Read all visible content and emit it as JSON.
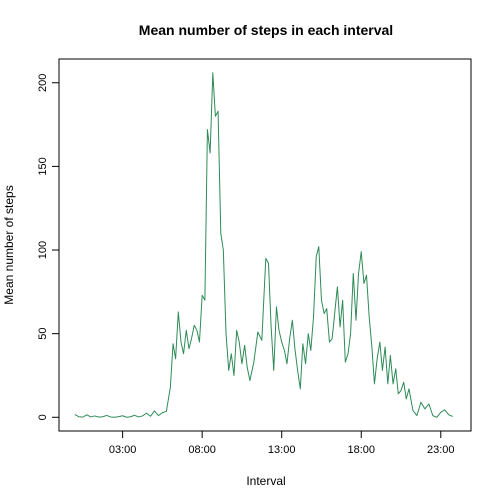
{
  "chart_data": {
    "type": "line",
    "title": "Mean number of steps in each interval",
    "xlabel": "Interval",
    "ylabel": "Mean number of steps",
    "line_color": "#2e8b57",
    "xlim": [
      -1.0,
      24.9
    ],
    "ylim": [
      -8.2,
      214.2
    ],
    "x_ticks": [
      {
        "value": 3,
        "label": "03:00"
      },
      {
        "value": 8,
        "label": "08:00"
      },
      {
        "value": 13,
        "label": "13:00"
      },
      {
        "value": 18,
        "label": "18:00"
      },
      {
        "value": 23,
        "label": "23:00"
      }
    ],
    "y_ticks": [
      {
        "value": 0,
        "label": "0"
      },
      {
        "value": 50,
        "label": "50"
      },
      {
        "value": 100,
        "label": "100"
      },
      {
        "value": 150,
        "label": "150"
      },
      {
        "value": 200,
        "label": "200"
      }
    ],
    "x": [
      0.0,
      0.25,
      0.5,
      0.75,
      1.0,
      1.25,
      1.5,
      1.75,
      2.0,
      2.25,
      2.5,
      2.75,
      3.0,
      3.25,
      3.5,
      3.75,
      4.0,
      4.25,
      4.5,
      4.75,
      5.0,
      5.25,
      5.5,
      5.75,
      6.0,
      6.17,
      6.33,
      6.5,
      6.67,
      6.83,
      7.0,
      7.17,
      7.33,
      7.5,
      7.67,
      7.83,
      8.0,
      8.17,
      8.33,
      8.5,
      8.67,
      8.83,
      9.0,
      9.17,
      9.33,
      9.5,
      9.67,
      9.83,
      10.0,
      10.17,
      10.33,
      10.5,
      10.67,
      10.83,
      11.0,
      11.25,
      11.5,
      11.75,
      12.0,
      12.17,
      12.33,
      12.5,
      12.67,
      12.83,
      13.0,
      13.17,
      13.33,
      13.5,
      13.67,
      13.83,
      14.0,
      14.17,
      14.33,
      14.5,
      14.67,
      14.83,
      15.0,
      15.17,
      15.33,
      15.5,
      15.67,
      15.83,
      16.0,
      16.17,
      16.33,
      16.5,
      16.67,
      16.83,
      17.0,
      17.17,
      17.33,
      17.5,
      17.67,
      17.83,
      18.0,
      18.17,
      18.33,
      18.5,
      18.67,
      18.83,
      19.0,
      19.17,
      19.33,
      19.5,
      19.67,
      19.83,
      20.0,
      20.17,
      20.33,
      20.5,
      20.67,
      20.83,
      21.0,
      21.25,
      21.5,
      21.75,
      22.0,
      22.25,
      22.5,
      22.75,
      23.0,
      23.25,
      23.5,
      23.75
    ],
    "values": [
      1.7,
      0.3,
      0.1,
      1.5,
      0.2,
      0.8,
      0.1,
      0.3,
      1.1,
      0.2,
      0.0,
      0.4,
      0.9,
      0.0,
      0.3,
      1.2,
      0.2,
      0.8,
      2.5,
      0.6,
      3.8,
      1.0,
      2.8,
      3.5,
      18.0,
      44.0,
      35.0,
      63.0,
      45.0,
      38.0,
      52.0,
      41.0,
      47.0,
      55.0,
      52.0,
      45.0,
      73.0,
      70.0,
      172.0,
      158.0,
      206.0,
      180.0,
      183.0,
      110.0,
      100.0,
      50.0,
      28.0,
      38.0,
      25.0,
      52.0,
      45.0,
      32.0,
      43.0,
      30.0,
      22.0,
      33.0,
      51.0,
      46.0,
      95.0,
      92.0,
      55.0,
      28.0,
      66.0,
      52.0,
      45.0,
      40.0,
      32.0,
      47.0,
      58.0,
      41.0,
      28.0,
      17.0,
      44.0,
      32.0,
      50.0,
      40.0,
      60.0,
      96.0,
      102.0,
      70.0,
      62.0,
      65.0,
      45.0,
      47.0,
      62.0,
      78.0,
      54.0,
      70.0,
      33.0,
      38.0,
      50.0,
      86.0,
      58.0,
      86.0,
      99.0,
      80.0,
      85.0,
      60.0,
      42.0,
      20.0,
      35.0,
      45.0,
      28.0,
      42.0,
      20.0,
      37.0,
      20.0,
      29.0,
      14.0,
      16.0,
      21.0,
      11.0,
      17.0,
      4.0,
      1.0,
      9.0,
      5.0,
      8.0,
      1.0,
      0.0,
      3.0,
      4.5,
      1.5,
      0.5
    ]
  }
}
